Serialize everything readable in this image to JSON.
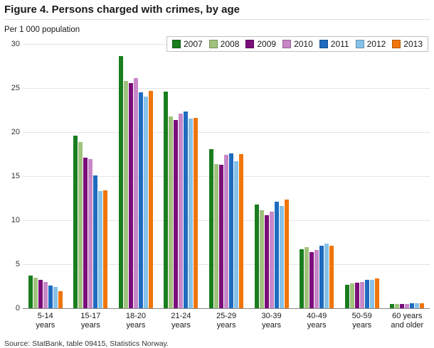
{
  "title": "Figure 4. Persons charged with crimes, by age",
  "source": "Source: StatBank, table 09415, Statistics Norway.",
  "chart_data": {
    "type": "bar",
    "title": "Figure 4. Persons charged with crimes, by age",
    "ylabel": "Per 1 000 population",
    "xlabel": "",
    "ylim": [
      0,
      30
    ],
    "yticks": [
      0,
      5,
      10,
      15,
      20,
      25,
      30
    ],
    "grid": true,
    "legend_position": "top-right",
    "categories": [
      "5-14\nyears",
      "15-17\nyears",
      "18-20\nyears",
      "21-24\nyears",
      "25-29\nyears",
      "30-39\nyears",
      "40-49\nyears",
      "50-59\nyears",
      "60 years\nand older"
    ],
    "series": [
      {
        "name": "2007",
        "color": "#1a7d1e",
        "values": [
          3.7,
          19.6,
          28.6,
          24.6,
          18.1,
          11.8,
          6.7,
          2.7,
          0.5
        ]
      },
      {
        "name": "2008",
        "color": "#a0c37c",
        "values": [
          3.5,
          18.9,
          25.8,
          21.8,
          16.4,
          11.1,
          6.9,
          2.8,
          0.5
        ]
      },
      {
        "name": "2009",
        "color": "#7b0d7b",
        "values": [
          3.2,
          17.1,
          25.6,
          21.4,
          16.3,
          10.6,
          6.4,
          2.9,
          0.5
        ]
      },
      {
        "name": "2010",
        "color": "#c787c7",
        "values": [
          3.0,
          16.9,
          26.1,
          22.1,
          17.4,
          11.0,
          6.6,
          3.0,
          0.5
        ]
      },
      {
        "name": "2011",
        "color": "#1e6bbf",
        "values": [
          2.6,
          15.1,
          24.5,
          22.3,
          17.6,
          12.1,
          7.1,
          3.2,
          0.6
        ]
      },
      {
        "name": "2012",
        "color": "#85c1e8",
        "values": [
          2.4,
          13.3,
          24.0,
          21.5,
          16.7,
          11.6,
          7.3,
          3.2,
          0.6
        ]
      },
      {
        "name": "2013",
        "color": "#f0750a",
        "values": [
          1.9,
          13.4,
          24.7,
          21.6,
          17.5,
          12.3,
          7.1,
          3.4,
          0.6
        ]
      }
    ]
  }
}
